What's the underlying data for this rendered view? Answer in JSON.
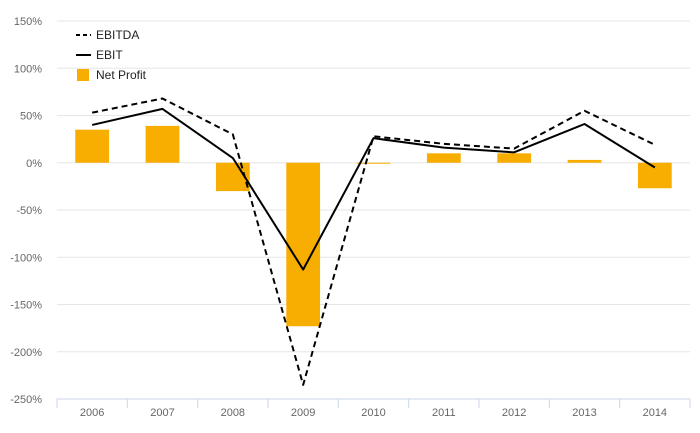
{
  "chart_data": {
    "type": "bar",
    "categories": [
      "2006",
      "2007",
      "2008",
      "2009",
      "2010",
      "2011",
      "2012",
      "2013",
      "2014"
    ],
    "ylim": [
      -250,
      150
    ],
    "yticks": [
      150,
      100,
      50,
      0,
      -50,
      -100,
      -150,
      -200,
      -250
    ],
    "ytick_labels": [
      "150%",
      "100%",
      "50%",
      "0%",
      "-50%",
      "-100%",
      "-150%",
      "-200%",
      "-250%"
    ],
    "grid": true,
    "legend_position": "top-left",
    "series": [
      {
        "name": "EBITDA",
        "kind": "line",
        "style": "dashed",
        "color": "#000000",
        "values": [
          53,
          68,
          30,
          -235,
          28,
          20,
          15,
          55,
          19
        ]
      },
      {
        "name": "EBIT",
        "kind": "line",
        "style": "solid",
        "color": "#000000",
        "values": [
          40,
          57,
          5,
          -113,
          26,
          16,
          11,
          41,
          -5
        ]
      },
      {
        "name": "Net Profit",
        "kind": "bar",
        "color": "#F7AE00",
        "values": [
          35,
          39,
          -30,
          -173,
          -1,
          10,
          10,
          3,
          -27
        ]
      }
    ]
  }
}
